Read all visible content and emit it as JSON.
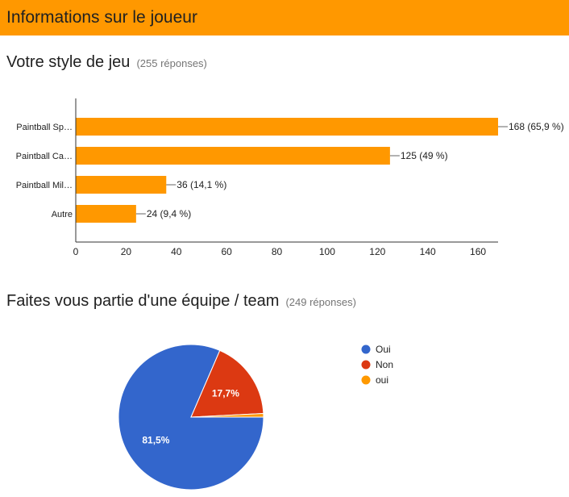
{
  "section": {
    "title": "Informations sur le joueur"
  },
  "questions": [
    {
      "title": "Votre style de jeu",
      "count": "(255 réponses)",
      "chart_data": {
        "type": "bar",
        "orientation": "horizontal",
        "categories": [
          "Paintball Sp…",
          "Paintball Ca…",
          "Paintball Mil…",
          "Autre"
        ],
        "values": [
          168,
          125,
          36,
          24
        ],
        "value_labels": [
          "168 (65,9 %)",
          "125 (49 %)",
          "36 (14,1 %)",
          "24 (9,4 %)"
        ],
        "xlim": [
          0,
          168
        ],
        "xticks": [
          0,
          20,
          40,
          60,
          80,
          100,
          120,
          140,
          160
        ],
        "bar_color": "#ff9800",
        "axis_color": "#333333"
      }
    },
    {
      "title": "Faites vous partie d'une équipe / team",
      "count": "(249 réponses)",
      "chart_data": {
        "type": "pie",
        "labels": [
          "Oui",
          "Non",
          "oui"
        ],
        "values": [
          81.5,
          17.7,
          0.8
        ],
        "slice_labels": [
          "81,5%",
          "17,7%",
          ""
        ],
        "colors": [
          "#3366cc",
          "#dc3912",
          "#ff9900"
        ],
        "legend_position": "right"
      }
    }
  ]
}
